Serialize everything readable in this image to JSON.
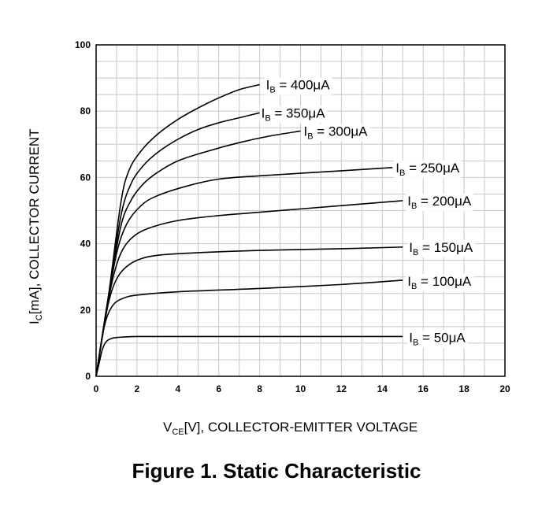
{
  "figure": {
    "caption": "Figure 1. Static Characteristic"
  },
  "chart_data": {
    "type": "line",
    "title": "",
    "xlabel": {
      "main": "V",
      "sub": "CE",
      "rest": "[V], COLLECTOR-EMITTER VOLTAGE"
    },
    "ylabel": {
      "main": "I",
      "sub": "C",
      "rest": "[mA], COLLECTOR CURRENT"
    },
    "xlim": [
      0,
      20
    ],
    "ylim": [
      0,
      100
    ],
    "xticks": [
      0,
      2,
      4,
      6,
      8,
      10,
      12,
      14,
      16,
      18,
      20
    ],
    "yticks": [
      0,
      20,
      40,
      60,
      80,
      100
    ],
    "grid": true,
    "series": [
      {
        "name": "IB = 50μA",
        "label_main": "I",
        "label_sub": "B",
        "label_rest": " = 50μA",
        "points": [
          [
            0,
            0
          ],
          [
            0.15,
            4
          ],
          [
            0.3,
            8
          ],
          [
            0.5,
            10.5
          ],
          [
            0.8,
            11.5
          ],
          [
            1.2,
            11.8
          ],
          [
            2,
            12
          ],
          [
            4,
            12
          ],
          [
            8,
            12
          ],
          [
            12,
            12
          ],
          [
            15,
            12
          ]
        ]
      },
      {
        "name": "IB = 100μA",
        "label_main": "I",
        "label_sub": "B",
        "label_rest": " = 100μA",
        "points": [
          [
            0,
            0
          ],
          [
            0.2,
            8
          ],
          [
            0.4,
            15
          ],
          [
            0.6,
            19
          ],
          [
            0.9,
            22
          ],
          [
            1.3,
            23.5
          ],
          [
            2,
            24.5
          ],
          [
            4,
            25.5
          ],
          [
            8,
            26.5
          ],
          [
            12,
            27.7
          ],
          [
            15,
            29
          ]
        ]
      },
      {
        "name": "IB = 150μA",
        "label_main": "I",
        "label_sub": "B",
        "label_rest": " = 150μA",
        "points": [
          [
            0,
            0
          ],
          [
            0.3,
            12
          ],
          [
            0.6,
            22
          ],
          [
            0.9,
            28
          ],
          [
            1.3,
            32
          ],
          [
            2,
            35
          ],
          [
            3,
            36.5
          ],
          [
            5,
            37.3
          ],
          [
            8,
            38
          ],
          [
            12,
            38.5
          ],
          [
            15,
            39
          ]
        ]
      },
      {
        "name": "IB = 200μA",
        "label_main": "I",
        "label_sub": "B",
        "label_rest": " = 200μA",
        "points": [
          [
            0,
            0
          ],
          [
            0.4,
            16
          ],
          [
            0.8,
            29
          ],
          [
            1.2,
            37
          ],
          [
            1.7,
            41.5
          ],
          [
            2.5,
            44.5
          ],
          [
            4,
            47
          ],
          [
            6,
            48.5
          ],
          [
            8,
            49.5
          ],
          [
            12,
            51.5
          ],
          [
            15,
            53
          ]
        ]
      },
      {
        "name": "IB = 250μA",
        "label_main": "I",
        "label_sub": "B",
        "label_rest": " = 250μA",
        "points": [
          [
            0,
            0
          ],
          [
            0.5,
            20
          ],
          [
            1,
            37
          ],
          [
            1.5,
            46
          ],
          [
            2.2,
            51.5
          ],
          [
            3,
            54.5
          ],
          [
            4.5,
            57.5
          ],
          [
            6,
            59.5
          ],
          [
            8,
            60.5
          ],
          [
            12,
            62
          ],
          [
            14.5,
            63
          ]
        ]
      },
      {
        "name": "IB = 300μA",
        "label_main": "I",
        "label_sub": "B",
        "label_rest": " = 300μA",
        "points": [
          [
            0,
            0
          ],
          [
            0.6,
            24
          ],
          [
            1.2,
            45
          ],
          [
            1.7,
            53
          ],
          [
            2.3,
            58
          ],
          [
            3,
            61.5
          ],
          [
            4,
            65
          ],
          [
            5.5,
            68
          ],
          [
            7,
            70.5
          ],
          [
            8.5,
            72.5
          ],
          [
            10,
            74
          ]
        ]
      },
      {
        "name": "IB = 350μA",
        "label_main": "I",
        "label_sub": "B",
        "label_rest": " = 350μA",
        "points": [
          [
            0,
            0
          ],
          [
            0.6,
            24
          ],
          [
            1.2,
            48
          ],
          [
            1.7,
            58
          ],
          [
            2.3,
            63.5
          ],
          [
            3,
            67.5
          ],
          [
            4,
            71.5
          ],
          [
            5,
            74.5
          ],
          [
            6,
            76.5
          ],
          [
            7,
            78
          ],
          [
            8,
            79.5
          ]
        ]
      },
      {
        "name": "IB = 400μA",
        "label_main": "I",
        "label_sub": "B",
        "label_rest": " = 400μA",
        "points": [
          [
            0,
            0
          ],
          [
            0.6,
            24
          ],
          [
            1.2,
            52
          ],
          [
            1.6,
            62
          ],
          [
            2.2,
            68
          ],
          [
            3,
            73
          ],
          [
            4,
            77.5
          ],
          [
            5,
            81
          ],
          [
            6,
            84
          ],
          [
            7,
            86.5
          ],
          [
            8,
            88
          ]
        ]
      }
    ]
  }
}
